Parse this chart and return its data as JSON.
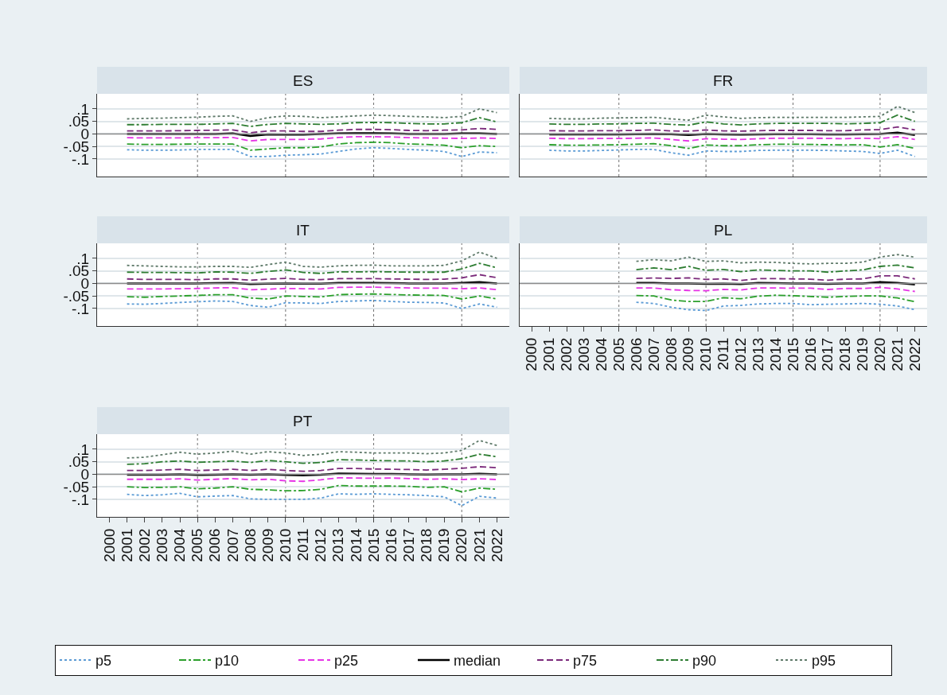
{
  "chart_data": [
    {
      "type": "line",
      "title": "ES",
      "categories": [
        "2000",
        "2001",
        "2002",
        "2003",
        "2004",
        "2005",
        "2006",
        "2007",
        "2008",
        "2009",
        "2010",
        "2011",
        "2012",
        "2013",
        "2014",
        "2015",
        "2016",
        "2017",
        "2018",
        "2019",
        "2020",
        "2021",
        "2022"
      ],
      "ylim": [
        -0.17,
        0.16
      ],
      "yticks": [
        {
          "value": -0.1,
          "label": "-.1"
        },
        {
          "value": -0.05,
          "label": "-.05"
        },
        0,
        {
          "value": 0.05,
          "label": ".05"
        },
        {
          "value": 0.1,
          "label": ".1"
        }
      ],
      "grid": "y",
      "tick_labels": "y",
      "legend": "bottom",
      "ref_lines": [
        {
          "axis": "y",
          "value": 0,
          "color": "#8c8c8c",
          "line_style": "solid"
        },
        {
          "axis": "x",
          "value": "2005",
          "color": "#707070",
          "line_style": "dotted"
        },
        {
          "axis": "x",
          "value": "2010",
          "color": "#707070",
          "line_style": "dotted"
        },
        {
          "axis": "x",
          "value": "2015",
          "color": "#707070",
          "line_style": "dotted"
        },
        {
          "axis": "x",
          "value": "2020",
          "color": "#707070",
          "line_style": "dotted"
        }
      ],
      "series": [
        {
          "name": "p5",
          "color": "#5b9bd5",
          "line_style": "dotted",
          "values": [
            null,
            -0.063,
            -0.065,
            -0.065,
            -0.064,
            -0.062,
            -0.062,
            -0.062,
            -0.09,
            -0.09,
            -0.085,
            -0.083,
            -0.08,
            -0.07,
            -0.06,
            -0.055,
            -0.058,
            -0.062,
            -0.065,
            -0.07,
            -0.09,
            -0.072,
            -0.075
          ]
        },
        {
          "name": "p10",
          "color": "#2ca02c",
          "line_style": "dashdot",
          "values": [
            null,
            -0.04,
            -0.042,
            -0.042,
            -0.041,
            -0.04,
            -0.04,
            -0.04,
            -0.065,
            -0.06,
            -0.055,
            -0.055,
            -0.052,
            -0.04,
            -0.035,
            -0.033,
            -0.035,
            -0.04,
            -0.042,
            -0.045,
            -0.055,
            -0.047,
            -0.05
          ]
        },
        {
          "name": "p25",
          "color": "#e633e6",
          "line_style": "dashed",
          "values": [
            null,
            -0.015,
            -0.016,
            -0.016,
            -0.016,
            -0.015,
            -0.015,
            -0.014,
            -0.028,
            -0.022,
            -0.022,
            -0.022,
            -0.02,
            -0.014,
            -0.011,
            -0.011,
            -0.012,
            -0.015,
            -0.016,
            -0.017,
            -0.018,
            -0.016,
            -0.018
          ]
        },
        {
          "name": "median",
          "color": "#000000",
          "line_style": "solid",
          "values": [
            null,
            0,
            0,
            0,
            0,
            0,
            0,
            0.002,
            -0.008,
            -0.002,
            -0.003,
            -0.003,
            0,
            0.002,
            0.003,
            0.003,
            0.002,
            0,
            0,
            0,
            0.002,
            0.002,
            0
          ]
        },
        {
          "name": "p75",
          "color": "#7b2a7b",
          "line_style": "dashed",
          "values": [
            null,
            0.012,
            0.012,
            0.012,
            0.013,
            0.014,
            0.015,
            0.016,
            0.005,
            0.012,
            0.012,
            0.01,
            0.01,
            0.015,
            0.018,
            0.018,
            0.017,
            0.014,
            0.013,
            0.015,
            0.016,
            0.022,
            0.018
          ]
        },
        {
          "name": "p90",
          "color": "#2e7d32",
          "line_style": "dashdot",
          "values": [
            null,
            0.037,
            0.037,
            0.038,
            0.038,
            0.038,
            0.04,
            0.042,
            0.03,
            0.038,
            0.042,
            0.04,
            0.038,
            0.04,
            0.045,
            0.046,
            0.045,
            0.042,
            0.04,
            0.04,
            0.045,
            0.065,
            0.048
          ]
        },
        {
          "name": "p95",
          "color": "#5f7a6a",
          "line_style": "dotted",
          "values": [
            null,
            0.06,
            0.062,
            0.063,
            0.065,
            0.067,
            0.07,
            0.072,
            0.05,
            0.065,
            0.072,
            0.07,
            0.065,
            0.068,
            0.072,
            0.075,
            0.073,
            0.07,
            0.068,
            0.065,
            0.07,
            0.1,
            0.085
          ]
        }
      ]
    },
    {
      "type": "line",
      "title": "FR",
      "categories": [
        "2000",
        "2001",
        "2002",
        "2003",
        "2004",
        "2005",
        "2006",
        "2007",
        "2008",
        "2009",
        "2010",
        "2011",
        "2012",
        "2013",
        "2014",
        "2015",
        "2016",
        "2017",
        "2018",
        "2019",
        "2020",
        "2021",
        "2022"
      ],
      "ylim": [
        -0.17,
        0.16
      ],
      "yticks": [
        -0.1,
        -0.05,
        0,
        0.05,
        0.1
      ],
      "grid": "y",
      "tick_labels": false,
      "ref_lines": [
        {
          "axis": "y",
          "value": 0,
          "color": "#8c8c8c",
          "line_style": "solid"
        },
        {
          "axis": "x",
          "value": "2005",
          "color": "#707070",
          "line_style": "dotted"
        },
        {
          "axis": "x",
          "value": "2010",
          "color": "#707070",
          "line_style": "dotted"
        },
        {
          "axis": "x",
          "value": "2015",
          "color": "#707070",
          "line_style": "dotted"
        },
        {
          "axis": "x",
          "value": "2020",
          "color": "#707070",
          "line_style": "dotted"
        }
      ],
      "series": [
        {
          "color": "#5b9bd5",
          "line_style": "dotted",
          "values": [
            null,
            -0.065,
            -0.068,
            -0.068,
            -0.066,
            -0.064,
            -0.062,
            -0.062,
            -0.075,
            -0.085,
            -0.068,
            -0.07,
            -0.07,
            -0.066,
            -0.065,
            -0.065,
            -0.065,
            -0.066,
            -0.068,
            -0.07,
            -0.078,
            -0.065,
            -0.09
          ]
        },
        {
          "color": "#2ca02c",
          "line_style": "dashdot",
          "values": [
            null,
            -0.043,
            -0.045,
            -0.045,
            -0.044,
            -0.043,
            -0.041,
            -0.039,
            -0.047,
            -0.058,
            -0.044,
            -0.047,
            -0.047,
            -0.043,
            -0.041,
            -0.041,
            -0.042,
            -0.043,
            -0.044,
            -0.043,
            -0.052,
            -0.043,
            -0.058
          ]
        },
        {
          "color": "#e633e6",
          "line_style": "dashed",
          "values": [
            null,
            -0.017,
            -0.019,
            -0.019,
            -0.018,
            -0.018,
            -0.017,
            -0.016,
            -0.022,
            -0.028,
            -0.019,
            -0.021,
            -0.022,
            -0.019,
            -0.017,
            -0.017,
            -0.017,
            -0.018,
            -0.019,
            -0.017,
            -0.019,
            -0.011,
            -0.022
          ]
        },
        {
          "color": "#000000",
          "line_style": "solid",
          "values": [
            null,
            -0.002,
            -0.002,
            -0.002,
            -0.002,
            -0.002,
            -0.001,
            0,
            -0.001,
            -0.004,
            0,
            -0.002,
            -0.003,
            -0.002,
            -0.001,
            -0.001,
            -0.001,
            -0.002,
            -0.002,
            -0.001,
            0,
            0.005,
            -0.004
          ]
        },
        {
          "color": "#7b2a7b",
          "line_style": "dashed",
          "values": [
            null,
            0.013,
            0.012,
            0.012,
            0.013,
            0.013,
            0.014,
            0.016,
            0.012,
            0.011,
            0.016,
            0.012,
            0.011,
            0.013,
            0.014,
            0.014,
            0.014,
            0.013,
            0.013,
            0.016,
            0.017,
            0.028,
            0.016
          ]
        },
        {
          "color": "#2e7d32",
          "line_style": "dashdot",
          "values": [
            null,
            0.04,
            0.038,
            0.038,
            0.04,
            0.04,
            0.042,
            0.043,
            0.038,
            0.035,
            0.048,
            0.04,
            0.036,
            0.04,
            0.042,
            0.042,
            0.042,
            0.042,
            0.04,
            0.042,
            0.045,
            0.075,
            0.05
          ]
        },
        {
          "color": "#5f7a6a",
          "line_style": "dotted",
          "values": [
            null,
            0.062,
            0.06,
            0.06,
            0.063,
            0.064,
            0.065,
            0.066,
            0.06,
            0.055,
            0.075,
            0.068,
            0.062,
            0.065,
            0.066,
            0.066,
            0.066,
            0.066,
            0.066,
            0.068,
            0.07,
            0.11,
            0.085
          ]
        }
      ]
    },
    {
      "type": "line",
      "title": "IT",
      "categories": [
        "2000",
        "2001",
        "2002",
        "2003",
        "2004",
        "2005",
        "2006",
        "2007",
        "2008",
        "2009",
        "2010",
        "2011",
        "2012",
        "2013",
        "2014",
        "2015",
        "2016",
        "2017",
        "2018",
        "2019",
        "2020",
        "2021",
        "2022"
      ],
      "ylim": [
        -0.17,
        0.16
      ],
      "yticks": [
        {
          "value": -0.1,
          "label": "-.1"
        },
        {
          "value": -0.05,
          "label": "-.05"
        },
        0,
        {
          "value": 0.05,
          "label": ".05"
        },
        {
          "value": 0.1,
          "label": ".1"
        }
      ],
      "grid": "y",
      "tick_labels": "y",
      "ref_lines": [
        {
          "axis": "y",
          "value": 0,
          "color": "#8c8c8c",
          "line_style": "solid"
        },
        {
          "axis": "x",
          "value": "2005",
          "color": "#707070",
          "line_style": "dotted"
        },
        {
          "axis": "x",
          "value": "2010",
          "color": "#707070",
          "line_style": "dotted"
        },
        {
          "axis": "x",
          "value": "2015",
          "color": "#707070",
          "line_style": "dotted"
        },
        {
          "axis": "x",
          "value": "2020",
          "color": "#707070",
          "line_style": "dotted"
        }
      ],
      "series": [
        {
          "color": "#5b9bd5",
          "line_style": "dotted",
          "values": [
            null,
            -0.082,
            -0.083,
            -0.08,
            -0.076,
            -0.073,
            -0.07,
            -0.072,
            -0.088,
            -0.095,
            -0.077,
            -0.078,
            -0.08,
            -0.072,
            -0.07,
            -0.068,
            -0.072,
            -0.075,
            -0.076,
            -0.078,
            -0.1,
            -0.082,
            -0.095
          ]
        },
        {
          "color": "#2ca02c",
          "line_style": "dashdot",
          "values": [
            null,
            -0.053,
            -0.055,
            -0.052,
            -0.05,
            -0.048,
            -0.045,
            -0.045,
            -0.058,
            -0.062,
            -0.05,
            -0.052,
            -0.054,
            -0.045,
            -0.043,
            -0.042,
            -0.044,
            -0.046,
            -0.047,
            -0.048,
            -0.062,
            -0.05,
            -0.062
          ]
        },
        {
          "color": "#e633e6",
          "line_style": "dashed",
          "values": [
            null,
            -0.022,
            -0.022,
            -0.022,
            -0.021,
            -0.02,
            -0.018,
            -0.017,
            -0.025,
            -0.023,
            -0.02,
            -0.021,
            -0.022,
            -0.016,
            -0.015,
            -0.015,
            -0.016,
            -0.018,
            -0.019,
            -0.019,
            -0.021,
            -0.018,
            -0.025
          ]
        },
        {
          "color": "#000000",
          "line_style": "solid",
          "values": [
            null,
            0,
            0,
            0,
            0,
            0,
            0.001,
            0.002,
            -0.003,
            -0.001,
            0,
            -0.001,
            -0.001,
            0.002,
            0.002,
            0.002,
            0.001,
            0,
            0,
            0,
            0.002,
            0.005,
            0
          ]
        },
        {
          "color": "#7b2a7b",
          "line_style": "dashed",
          "values": [
            null,
            0.018,
            0.016,
            0.016,
            0.016,
            0.015,
            0.018,
            0.018,
            0.013,
            0.017,
            0.02,
            0.016,
            0.015,
            0.019,
            0.019,
            0.019,
            0.018,
            0.017,
            0.016,
            0.017,
            0.022,
            0.035,
            0.023
          ]
        },
        {
          "color": "#2e7d32",
          "line_style": "dashdot",
          "values": [
            null,
            0.045,
            0.044,
            0.044,
            0.043,
            0.042,
            0.046,
            0.045,
            0.04,
            0.048,
            0.054,
            0.044,
            0.04,
            0.046,
            0.046,
            0.047,
            0.046,
            0.045,
            0.045,
            0.045,
            0.058,
            0.08,
            0.062
          ]
        },
        {
          "color": "#5f7a6a",
          "line_style": "dotted",
          "values": [
            null,
            0.072,
            0.07,
            0.068,
            0.066,
            0.066,
            0.068,
            0.068,
            0.064,
            0.075,
            0.085,
            0.068,
            0.065,
            0.07,
            0.072,
            0.073,
            0.07,
            0.07,
            0.07,
            0.072,
            0.09,
            0.125,
            0.1
          ]
        }
      ]
    },
    {
      "type": "line",
      "title": "PL",
      "categories": [
        "2000",
        "2001",
        "2002",
        "2003",
        "2004",
        "2005",
        "2006",
        "2007",
        "2008",
        "2009",
        "2010",
        "2011",
        "2012",
        "2013",
        "2014",
        "2015",
        "2016",
        "2017",
        "2018",
        "2019",
        "2020",
        "2021",
        "2022"
      ],
      "ylim": [
        -0.17,
        0.16
      ],
      "yticks": [
        -0.1,
        -0.05,
        0,
        0.05,
        0.1
      ],
      "grid": "y",
      "tick_labels": "x",
      "ref_lines": [
        {
          "axis": "y",
          "value": 0,
          "color": "#8c8c8c",
          "line_style": "solid"
        },
        {
          "axis": "x",
          "value": "2005",
          "color": "#707070",
          "line_style": "dotted"
        },
        {
          "axis": "x",
          "value": "2010",
          "color": "#707070",
          "line_style": "dotted"
        },
        {
          "axis": "x",
          "value": "2015",
          "color": "#707070",
          "line_style": "dotted"
        },
        {
          "axis": "x",
          "value": "2020",
          "color": "#707070",
          "line_style": "dotted"
        }
      ],
      "series": [
        {
          "color": "#5b9bd5",
          "line_style": "dotted",
          "values": [
            null,
            null,
            null,
            null,
            null,
            null,
            -0.075,
            -0.08,
            -0.095,
            -0.105,
            -0.108,
            -0.09,
            -0.088,
            -0.082,
            -0.08,
            -0.08,
            -0.085,
            -0.083,
            -0.082,
            -0.08,
            -0.083,
            -0.09,
            -0.105
          ]
        },
        {
          "color": "#2ca02c",
          "line_style": "dashdot",
          "values": [
            null,
            null,
            null,
            null,
            null,
            null,
            -0.048,
            -0.05,
            -0.066,
            -0.072,
            -0.072,
            -0.057,
            -0.061,
            -0.051,
            -0.047,
            -0.049,
            -0.052,
            -0.055,
            -0.052,
            -0.05,
            -0.05,
            -0.058,
            -0.073
          ]
        },
        {
          "color": "#e633e6",
          "line_style": "dashed",
          "values": [
            null,
            null,
            null,
            null,
            null,
            null,
            -0.018,
            -0.018,
            -0.025,
            -0.028,
            -0.029,
            -0.024,
            -0.026,
            -0.018,
            -0.018,
            -0.019,
            -0.019,
            -0.024,
            -0.02,
            -0.02,
            -0.016,
            -0.022,
            -0.032
          ]
        },
        {
          "color": "#000000",
          "line_style": "solid",
          "values": [
            null,
            null,
            null,
            null,
            null,
            null,
            0.002,
            0.002,
            0,
            0,
            -0.002,
            -0.001,
            -0.003,
            0.002,
            0.001,
            0,
            0,
            -0.002,
            0,
            0,
            0.005,
            0.002,
            -0.004
          ]
        },
        {
          "color": "#7b2a7b",
          "line_style": "dashed",
          "values": [
            null,
            null,
            null,
            null,
            null,
            null,
            0.02,
            0.022,
            0.02,
            0.022,
            0.016,
            0.018,
            0.012,
            0.019,
            0.019,
            0.018,
            0.017,
            0.013,
            0.017,
            0.018,
            0.03,
            0.03,
            0.018
          ]
        },
        {
          "color": "#2e7d32",
          "line_style": "dashdot",
          "values": [
            null,
            null,
            null,
            null,
            null,
            null,
            0.055,
            0.062,
            0.055,
            0.068,
            0.052,
            0.056,
            0.047,
            0.054,
            0.052,
            0.05,
            0.05,
            0.045,
            0.05,
            0.054,
            0.068,
            0.073,
            0.062
          ]
        },
        {
          "color": "#5f7a6a",
          "line_style": "dotted",
          "values": [
            null,
            null,
            null,
            null,
            null,
            null,
            0.088,
            0.095,
            0.09,
            0.105,
            0.088,
            0.09,
            0.082,
            0.085,
            0.084,
            0.08,
            0.078,
            0.08,
            0.08,
            0.085,
            0.105,
            0.115,
            0.105
          ]
        }
      ]
    },
    {
      "type": "line",
      "title": "PT",
      "categories": [
        "2000",
        "2001",
        "2002",
        "2003",
        "2004",
        "2005",
        "2006",
        "2007",
        "2008",
        "2009",
        "2010",
        "2011",
        "2012",
        "2013",
        "2014",
        "2015",
        "2016",
        "2017",
        "2018",
        "2019",
        "2020",
        "2021",
        "2022"
      ],
      "ylim": [
        -0.17,
        0.16
      ],
      "yticks": [
        {
          "value": -0.1,
          "label": "-.1"
        },
        {
          "value": -0.05,
          "label": "-.05"
        },
        0,
        {
          "value": 0.05,
          "label": ".05"
        },
        {
          "value": 0.1,
          "label": ".1"
        }
      ],
      "grid": "y",
      "ref_lines": [
        {
          "axis": "y",
          "value": 0,
          "color": "#8c8c8c",
          "line_style": "solid"
        },
        {
          "axis": "x",
          "value": "2005",
          "color": "#707070",
          "line_style": "dotted"
        },
        {
          "axis": "x",
          "value": "2010",
          "color": "#707070",
          "line_style": "dotted"
        },
        {
          "axis": "x",
          "value": "2015",
          "color": "#707070",
          "line_style": "dotted"
        },
        {
          "axis": "x",
          "value": "2020",
          "color": "#707070",
          "line_style": "dotted"
        }
      ],
      "series": [
        {
          "color": "#5b9bd5",
          "line_style": "dotted",
          "values": [
            null,
            -0.08,
            -0.085,
            -0.082,
            -0.076,
            -0.09,
            -0.087,
            -0.085,
            -0.098,
            -0.1,
            -0.1,
            -0.1,
            -0.095,
            -0.078,
            -0.08,
            -0.078,
            -0.08,
            -0.082,
            -0.085,
            -0.09,
            -0.125,
            -0.088,
            -0.095
          ]
        },
        {
          "color": "#2ca02c",
          "line_style": "dashdot",
          "values": [
            null,
            -0.05,
            -0.053,
            -0.052,
            -0.05,
            -0.058,
            -0.055,
            -0.05,
            -0.06,
            -0.062,
            -0.066,
            -0.065,
            -0.06,
            -0.045,
            -0.047,
            -0.047,
            -0.047,
            -0.048,
            -0.052,
            -0.05,
            -0.07,
            -0.055,
            -0.06
          ]
        },
        {
          "color": "#e633e6",
          "line_style": "dashed",
          "values": [
            null,
            -0.02,
            -0.02,
            -0.02,
            -0.018,
            -0.023,
            -0.02,
            -0.017,
            -0.022,
            -0.02,
            -0.026,
            -0.028,
            -0.022,
            -0.014,
            -0.015,
            -0.016,
            -0.015,
            -0.017,
            -0.02,
            -0.018,
            -0.021,
            -0.018,
            -0.021
          ]
        },
        {
          "color": "#000000",
          "line_style": "solid",
          "values": [
            null,
            -0.002,
            -0.002,
            -0.002,
            0,
            -0.003,
            -0.002,
            0,
            -0.002,
            0,
            -0.003,
            -0.004,
            -0.002,
            0.003,
            0.002,
            0.001,
            0.001,
            0,
            -0.001,
            0,
            0,
            0.002,
            0
          ]
        },
        {
          "color": "#7b2a7b",
          "line_style": "dashed",
          "values": [
            null,
            0.015,
            0.015,
            0.017,
            0.02,
            0.015,
            0.017,
            0.02,
            0.015,
            0.02,
            0.015,
            0.012,
            0.015,
            0.023,
            0.023,
            0.021,
            0.02,
            0.019,
            0.017,
            0.02,
            0.024,
            0.03,
            0.026
          ]
        },
        {
          "color": "#2e7d32",
          "line_style": "dashdot",
          "values": [
            null,
            0.04,
            0.042,
            0.05,
            0.053,
            0.048,
            0.05,
            0.053,
            0.047,
            0.055,
            0.05,
            0.044,
            0.047,
            0.058,
            0.057,
            0.055,
            0.054,
            0.053,
            0.05,
            0.053,
            0.062,
            0.08,
            0.07
          ]
        },
        {
          "color": "#5f7a6a",
          "line_style": "dotted",
          "values": [
            null,
            0.065,
            0.068,
            0.078,
            0.088,
            0.08,
            0.085,
            0.092,
            0.08,
            0.09,
            0.085,
            0.075,
            0.08,
            0.09,
            0.088,
            0.085,
            0.085,
            0.085,
            0.082,
            0.085,
            0.095,
            0.135,
            0.115
          ]
        }
      ]
    }
  ]
}
